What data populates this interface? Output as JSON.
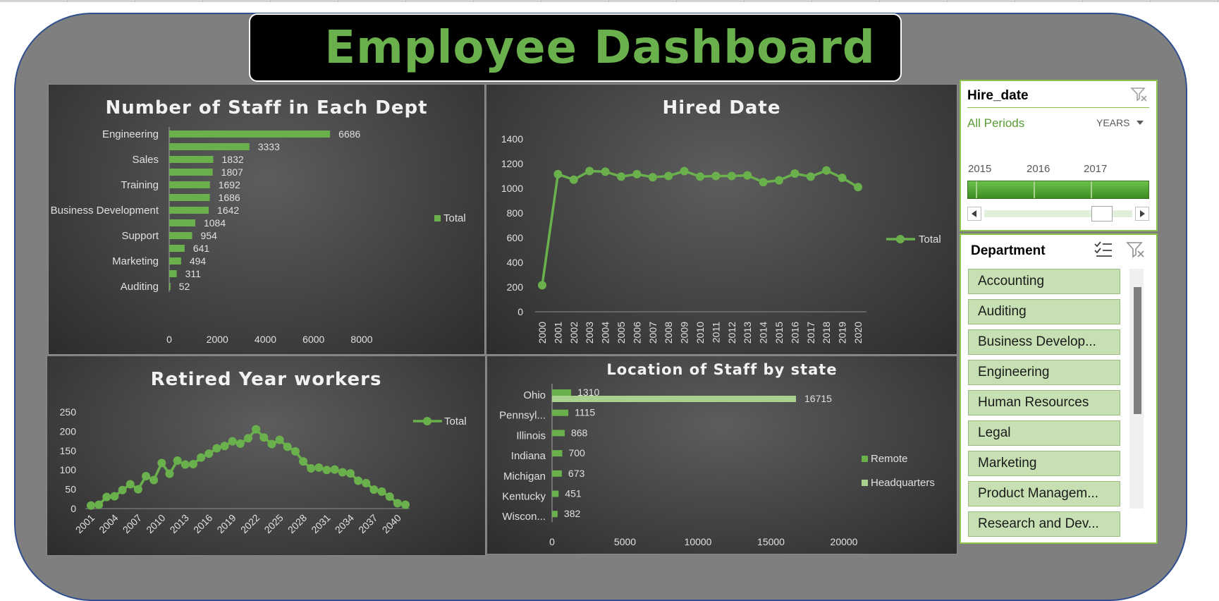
{
  "dashboard_title": "Employee Dashboard",
  "colors": {
    "accent": "#6ab04c",
    "headquarters": "#a9d18e",
    "frame_border": "#2f4f8f"
  },
  "charts": {
    "staff_by_dept": {
      "title": "Number of Staff in Each Dept",
      "legend": "Total",
      "category_labels": [
        "Engineering",
        "Sales",
        "Training",
        "Business Development",
        "Support",
        "Marketing",
        "Auditing"
      ],
      "x_ticks": [
        "0",
        "2000",
        "4000",
        "6000",
        "8000"
      ]
    },
    "hired_date": {
      "title": "Hired Date",
      "legend": "Total",
      "y_ticks": [
        "0",
        "200",
        "400",
        "600",
        "800",
        "1000",
        "1200",
        "1400"
      ]
    },
    "retired_year": {
      "title": "Retired Year workers",
      "legend": "Total",
      "y_ticks": [
        "0",
        "50",
        "100",
        "150",
        "200",
        "250"
      ],
      "x_ticks": [
        "2001",
        "2004",
        "2007",
        "2010",
        "2013",
        "2016",
        "2019",
        "2022",
        "2025",
        "2028",
        "2031",
        "2034",
        "2037",
        "2040"
      ]
    },
    "location_by_state": {
      "title": "Location of  Staff by state",
      "legend_remote": "Remote",
      "legend_hq": "Headquarters",
      "x_ticks": [
        "0",
        "5000",
        "10000",
        "15000",
        "20000"
      ]
    }
  },
  "chart_data": [
    {
      "type": "bar",
      "orientation": "horizontal",
      "title": "Number of Staff in Each Dept",
      "series": [
        {
          "name": "Total",
          "values": [
            6686,
            3333,
            1832,
            1807,
            1692,
            1686,
            1642,
            1084,
            954,
            641,
            494,
            311,
            52
          ]
        }
      ],
      "category_labels_shown": [
        "Engineering",
        "",
        "Sales",
        "",
        "Training",
        "",
        "Business Development",
        "",
        "Support",
        "",
        "Marketing",
        "",
        "Auditing"
      ],
      "xlim": [
        0,
        8000
      ],
      "legend_position": "right"
    },
    {
      "type": "line",
      "title": "Hired Date",
      "x": [
        2000,
        2001,
        2002,
        2003,
        2004,
        2005,
        2006,
        2007,
        2008,
        2009,
        2010,
        2011,
        2012,
        2013,
        2014,
        2015,
        2016,
        2017,
        2018,
        2019,
        2020
      ],
      "series": [
        {
          "name": "Total",
          "values": [
            215,
            1115,
            1070,
            1140,
            1135,
            1095,
            1115,
            1090,
            1100,
            1140,
            1095,
            1100,
            1100,
            1105,
            1050,
            1065,
            1120,
            1095,
            1145,
            1085,
            1010
          ]
        }
      ],
      "ylim": [
        0,
        1400
      ],
      "legend_position": "right"
    },
    {
      "type": "line",
      "title": "Retired Year workers",
      "x": [
        2001,
        2002,
        2003,
        2004,
        2005,
        2006,
        2007,
        2008,
        2009,
        2010,
        2011,
        2012,
        2013,
        2014,
        2015,
        2016,
        2017,
        2018,
        2019,
        2020,
        2021,
        2022,
        2023,
        2024,
        2025,
        2026,
        2027,
        2028,
        2029,
        2030,
        2031,
        2032,
        2033,
        2034,
        2035,
        2036,
        2037,
        2038,
        2039,
        2040,
        2041
      ],
      "series": [
        {
          "name": "Total",
          "values": [
            8,
            10,
            30,
            32,
            48,
            63,
            50,
            84,
            74,
            118,
            90,
            124,
            114,
            115,
            132,
            142,
            156,
            162,
            174,
            168,
            182,
            205,
            184,
            167,
            178,
            160,
            148,
            122,
            104,
            106,
            100,
            101,
            94,
            91,
            72,
            66,
            49,
            44,
            31,
            14,
            10
          ]
        }
      ],
      "ylim": [
        0,
        250
      ],
      "legend_position": "top-right"
    },
    {
      "type": "bar",
      "orientation": "horizontal",
      "title": "Location of  Staff by state",
      "categories": [
        "Ohio",
        "Pennsyl...",
        "Illinois",
        "Indiana",
        "Michigan",
        "Kentucky",
        "Wiscon..."
      ],
      "series": [
        {
          "name": "Remote",
          "values": [
            1310,
            1115,
            868,
            700,
            673,
            451,
            382
          ]
        },
        {
          "name": "Headquarters",
          "values": [
            16715,
            0,
            0,
            0,
            0,
            0,
            0
          ]
        }
      ],
      "xlim": [
        0,
        20000
      ],
      "legend_position": "right"
    }
  ],
  "slicers": {
    "hire_date": {
      "title": "Hire_date",
      "period_label": "All Periods",
      "granularity": "YEARS",
      "years": [
        "2015",
        "2016",
        "2017"
      ]
    },
    "department": {
      "title": "Department",
      "items": [
        "Accounting",
        "Auditing",
        "Business Develop...",
        "Engineering",
        "Human Resources",
        "Legal",
        "Marketing",
        "Product Managem...",
        "Research and Dev..."
      ]
    }
  }
}
